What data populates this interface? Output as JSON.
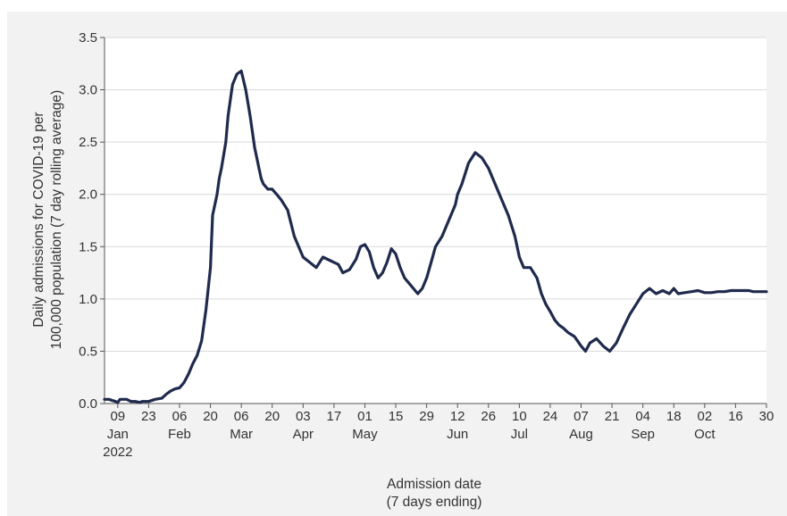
{
  "chart_data": {
    "type": "line",
    "title": "",
    "ylabel_lines": [
      "Daily admissions for COVID-19 per",
      "100,000 population (7 day rolling average)"
    ],
    "xlabel_lines": [
      "Admission date",
      "(7 days ending)"
    ],
    "ylim": [
      0,
      3.5
    ],
    "yticks": [
      0.0,
      0.5,
      1.0,
      1.5,
      2.0,
      2.5,
      3.0,
      3.5
    ],
    "ytick_labels": [
      "0.0",
      "0.5",
      "1.0",
      "1.5",
      "2.0",
      "2.5",
      "3.0",
      "3.5"
    ],
    "xlim": [
      "2022-01-03",
      "2022-10-30"
    ],
    "grid": "horizontal",
    "line_color": "#1f2a4d",
    "xticks": [
      {
        "date": "2022-01-09",
        "label": "09"
      },
      {
        "date": "2022-01-23",
        "label": "23"
      },
      {
        "date": "2022-02-06",
        "label": "06"
      },
      {
        "date": "2022-02-20",
        "label": "20"
      },
      {
        "date": "2022-03-06",
        "label": "06"
      },
      {
        "date": "2022-03-20",
        "label": "20"
      },
      {
        "date": "2022-04-03",
        "label": "03"
      },
      {
        "date": "2022-04-17",
        "label": "17"
      },
      {
        "date": "2022-05-01",
        "label": "01"
      },
      {
        "date": "2022-05-15",
        "label": "15"
      },
      {
        "date": "2022-05-29",
        "label": "29"
      },
      {
        "date": "2022-06-12",
        "label": "12"
      },
      {
        "date": "2022-06-26",
        "label": "26"
      },
      {
        "date": "2022-07-10",
        "label": "10"
      },
      {
        "date": "2022-07-24",
        "label": "24"
      },
      {
        "date": "2022-08-07",
        "label": "07"
      },
      {
        "date": "2022-08-21",
        "label": "21"
      },
      {
        "date": "2022-09-04",
        "label": "04"
      },
      {
        "date": "2022-09-18",
        "label": "18"
      },
      {
        "date": "2022-10-02",
        "label": "02"
      },
      {
        "date": "2022-10-16",
        "label": "16"
      },
      {
        "date": "2022-10-30",
        "label": "30"
      }
    ],
    "month_labels": [
      {
        "date": "2022-01-09",
        "label": "Jan"
      },
      {
        "date": "2022-02-06",
        "label": "Feb"
      },
      {
        "date": "2022-03-06",
        "label": "Mar"
      },
      {
        "date": "2022-04-03",
        "label": "Apr"
      },
      {
        "date": "2022-05-01",
        "label": "May"
      },
      {
        "date": "2022-06-12",
        "label": "Jun"
      },
      {
        "date": "2022-07-10",
        "label": "Jul"
      },
      {
        "date": "2022-08-07",
        "label": "Aug"
      },
      {
        "date": "2022-09-04",
        "label": "Sep"
      },
      {
        "date": "2022-10-02",
        "label": "Oct"
      }
    ],
    "year_label": {
      "date": "2022-01-09",
      "label": "2022"
    },
    "series": [
      {
        "x": [
          "2022-01-03",
          "2022-01-05",
          "2022-01-08",
          "2022-01-09",
          "2022-01-10",
          "2022-01-13",
          "2022-01-15",
          "2022-01-17",
          "2022-01-19",
          "2022-01-20",
          "2022-01-23",
          "2022-01-26",
          "2022-01-29",
          "2022-01-31",
          "2022-02-02",
          "2022-02-04",
          "2022-02-06",
          "2022-02-08",
          "2022-02-10",
          "2022-02-12",
          "2022-02-14",
          "2022-02-16",
          "2022-02-18",
          "2022-02-20",
          "2022-02-21",
          "2022-02-23",
          "2022-02-24",
          "2022-02-25",
          "2022-02-27",
          "2022-02-28",
          "2022-03-02",
          "2022-03-04",
          "2022-03-06",
          "2022-03-08",
          "2022-03-10",
          "2022-03-12",
          "2022-03-14",
          "2022-03-15",
          "2022-03-16",
          "2022-03-18",
          "2022-03-20",
          "2022-03-22",
          "2022-03-24",
          "2022-03-27",
          "2022-03-30",
          "2022-04-02",
          "2022-04-03",
          "2022-04-06",
          "2022-04-09",
          "2022-04-12",
          "2022-04-15",
          "2022-04-17",
          "2022-04-19",
          "2022-04-21",
          "2022-04-24",
          "2022-04-27",
          "2022-04-29",
          "2022-05-01",
          "2022-05-03",
          "2022-05-05",
          "2022-05-07",
          "2022-05-09",
          "2022-05-11",
          "2022-05-13",
          "2022-05-15",
          "2022-05-17",
          "2022-05-19",
          "2022-05-21",
          "2022-05-23",
          "2022-05-25",
          "2022-05-27",
          "2022-05-29",
          "2022-05-31",
          "2022-06-02",
          "2022-06-05",
          "2022-06-08",
          "2022-06-11",
          "2022-06-12",
          "2022-06-14",
          "2022-06-17",
          "2022-06-20",
          "2022-06-23",
          "2022-06-26",
          "2022-06-29",
          "2022-07-02",
          "2022-07-05",
          "2022-07-08",
          "2022-07-10",
          "2022-07-12",
          "2022-07-15",
          "2022-07-18",
          "2022-07-20",
          "2022-07-22",
          "2022-07-24",
          "2022-07-26",
          "2022-07-28",
          "2022-07-30",
          "2022-08-01",
          "2022-08-04",
          "2022-08-07",
          "2022-08-09",
          "2022-08-11",
          "2022-08-14",
          "2022-08-17",
          "2022-08-20",
          "2022-08-23",
          "2022-08-26",
          "2022-08-29",
          "2022-09-01",
          "2022-09-04",
          "2022-09-07",
          "2022-09-10",
          "2022-09-13",
          "2022-09-16",
          "2022-09-18",
          "2022-09-20",
          "2022-09-23",
          "2022-09-26",
          "2022-09-29",
          "2022-10-02",
          "2022-10-05",
          "2022-10-08",
          "2022-10-11",
          "2022-10-14",
          "2022-10-17",
          "2022-10-20",
          "2022-10-22",
          "2022-10-24",
          "2022-10-26",
          "2022-10-28",
          "2022-10-30"
        ],
        "y": [
          0.04,
          0.04,
          0.02,
          0.01,
          0.04,
          0.04,
          0.02,
          0.02,
          0.01,
          0.02,
          0.02,
          0.04,
          0.05,
          0.09,
          0.12,
          0.14,
          0.15,
          0.2,
          0.28,
          0.38,
          0.46,
          0.6,
          0.9,
          1.3,
          1.8,
          2.0,
          2.15,
          2.25,
          2.5,
          2.75,
          3.05,
          3.15,
          3.18,
          3.0,
          2.75,
          2.45,
          2.25,
          2.15,
          2.1,
          2.05,
          2.05,
          2.0,
          1.95,
          1.85,
          1.6,
          1.45,
          1.4,
          1.35,
          1.3,
          1.4,
          1.37,
          1.35,
          1.33,
          1.25,
          1.28,
          1.38,
          1.5,
          1.52,
          1.45,
          1.3,
          1.2,
          1.25,
          1.35,
          1.48,
          1.43,
          1.3,
          1.2,
          1.15,
          1.1,
          1.05,
          1.1,
          1.2,
          1.35,
          1.5,
          1.6,
          1.75,
          1.9,
          2.0,
          2.1,
          2.3,
          2.4,
          2.35,
          2.25,
          2.1,
          1.95,
          1.8,
          1.6,
          1.4,
          1.3,
          1.3,
          1.2,
          1.05,
          0.95,
          0.88,
          0.8,
          0.75,
          0.72,
          0.68,
          0.64,
          0.55,
          0.5,
          0.58,
          0.62,
          0.55,
          0.5,
          0.58,
          0.72,
          0.85,
          0.95,
          1.05,
          1.1,
          1.05,
          1.08,
          1.05,
          1.1,
          1.05,
          1.06,
          1.07,
          1.08,
          1.06,
          1.06,
          1.07,
          1.07,
          1.08,
          1.08,
          1.08,
          1.08,
          1.07,
          1.07,
          1.07,
          1.07
        ]
      }
    ]
  }
}
